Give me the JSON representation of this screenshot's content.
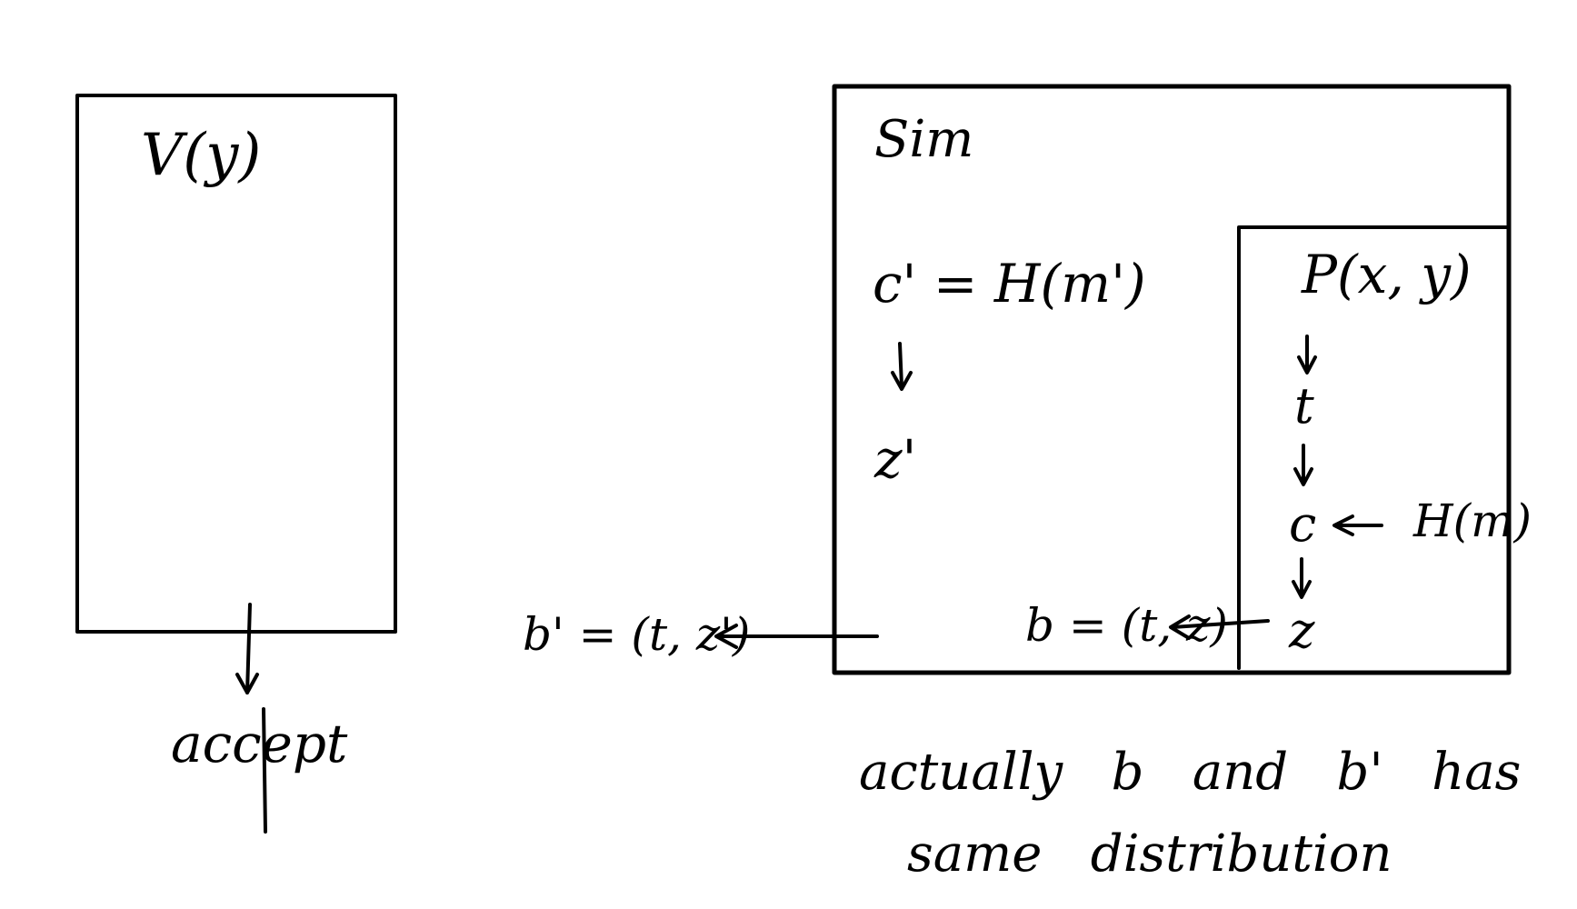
{
  "diagram": {
    "verifier_box": {
      "title": "V(y)",
      "output_label": "accept"
    },
    "sim_box": {
      "title": "Sim",
      "line1": "c' = H(m')",
      "line2": "z'",
      "output_label": "b' = (t, z')",
      "inner_box": {
        "title": "P(x, y)",
        "step_t": "t",
        "step_c": "c",
        "step_z": "z",
        "oracle_label": "H(m)",
        "output_label": "b = (t, z)"
      }
    },
    "note": {
      "line1": "actually   b   and   b'   has",
      "line2": "same   distribution"
    }
  }
}
